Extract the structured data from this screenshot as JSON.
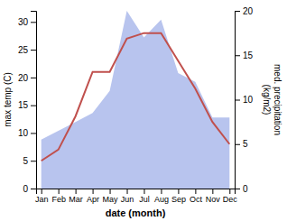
{
  "chart_data": {
    "type": "line",
    "categories": [
      "Jan",
      "Feb",
      "Mar",
      "Apr",
      "May",
      "Jun",
      "Jul",
      "Aug",
      "Sep",
      "Oct",
      "Nov",
      "Dec"
    ],
    "x_label": "date (month)",
    "y_label": "max temp (C)",
    "y2_label": "med. precipitation\n(kg/m2)",
    "series": [
      {
        "type": "area",
        "axis": "y2",
        "color": "#b8c4ee",
        "values": [
          5.5,
          6.5,
          7.5,
          8.5,
          11,
          20,
          17,
          19,
          13,
          12,
          8,
          8
        ]
      },
      {
        "type": "line",
        "color": "#c0504d",
        "values": [
          5,
          7,
          13,
          21,
          21,
          27,
          28,
          28,
          23,
          18,
          12,
          8
        ]
      }
    ],
    "ylim": [
      0,
      32
    ],
    "yticks": [
      0,
      5,
      10,
      15,
      20,
      25,
      30
    ],
    "y2lim": [
      0,
      20
    ],
    "y2ticks": [
      0,
      5,
      10,
      15,
      20
    ],
    "grid": false
  }
}
